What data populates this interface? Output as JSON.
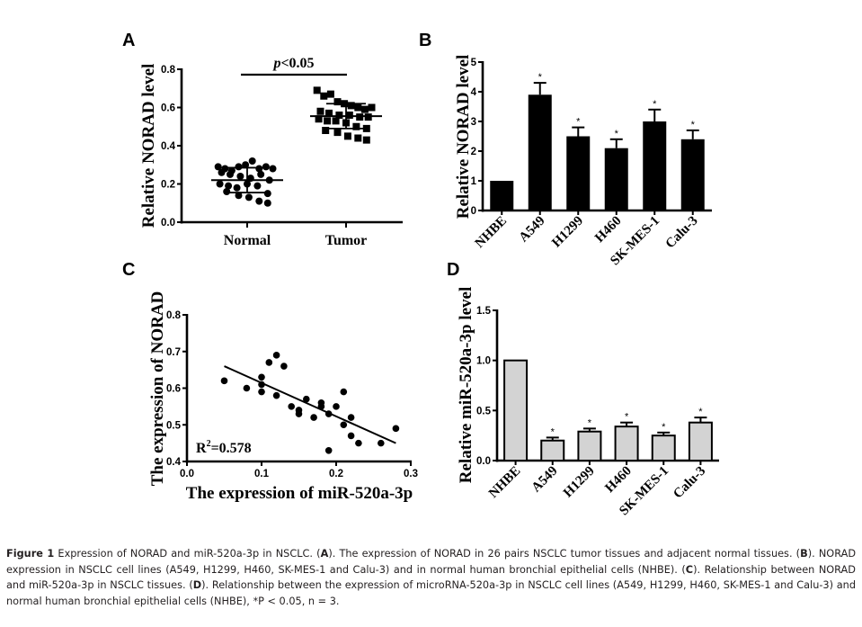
{
  "chart_data": [
    {
      "panel": "A",
      "type": "scatter",
      "subtype": "dot-plot with mean ± SD",
      "ylabel": "Relative NORAD level",
      "xlabel": "",
      "ylim": [
        0.0,
        0.8
      ],
      "yticks": [
        "0.0",
        "0.2",
        "0.4",
        "0.6",
        "0.8"
      ],
      "yticks_values": [
        0,
        0.2,
        0.4,
        0.6,
        0.8
      ],
      "categories": [
        "Normal",
        "Tumor"
      ],
      "annotation": "p<0.05",
      "series": [
        {
          "name": "Normal",
          "marker": "circle",
          "mean": 0.22,
          "sd": 0.065,
          "values": [
            0.29,
            0.28,
            0.27,
            0.29,
            0.3,
            0.32,
            0.28,
            0.29,
            0.28,
            0.26,
            0.25,
            0.24,
            0.23,
            0.25,
            0.22,
            0.2,
            0.19,
            0.18,
            0.2,
            0.19,
            0.15,
            0.16,
            0.14,
            0.13,
            0.11,
            0.1
          ]
        },
        {
          "name": "Tumor",
          "marker": "square",
          "mean": 0.555,
          "sd": 0.065,
          "values": [
            0.69,
            0.66,
            0.67,
            0.63,
            0.62,
            0.61,
            0.6,
            0.59,
            0.6,
            0.58,
            0.57,
            0.56,
            0.56,
            0.55,
            0.55,
            0.54,
            0.53,
            0.53,
            0.52,
            0.5,
            0.49,
            0.48,
            0.47,
            0.45,
            0.44,
            0.43
          ]
        }
      ]
    },
    {
      "panel": "B",
      "type": "bar",
      "ylabel": "Relative NORAD level",
      "xlabel": "",
      "ylim": [
        0,
        5
      ],
      "yticks": [
        "0",
        "1",
        "2",
        "3",
        "4",
        "5"
      ],
      "yticks_values": [
        0,
        1,
        2,
        3,
        4,
        5
      ],
      "categories": [
        "NHBE",
        "A549",
        "H1299",
        "H460",
        "SK-MES-1",
        "Calu-3"
      ],
      "values": [
        1.0,
        3.9,
        2.5,
        2.1,
        3.0,
        2.4
      ],
      "errors": [
        0,
        0.4,
        0.3,
        0.3,
        0.4,
        0.3
      ],
      "significance": [
        "",
        "*",
        "*",
        "*",
        "*",
        "*"
      ],
      "bar_color": "#000000"
    },
    {
      "panel": "C",
      "type": "scatter",
      "xlabel": "The expression of miR-520a-3p",
      "ylabel": "The expression of NORAD",
      "xlim": [
        0.0,
        0.3
      ],
      "ylim": [
        0.4,
        0.8
      ],
      "xticks": [
        "0.0",
        "0.1",
        "0.2",
        "0.3"
      ],
      "xticks_values": [
        0.0,
        0.1,
        0.2,
        0.3
      ],
      "yticks": [
        "0.4",
        "0.5",
        "0.6",
        "0.7",
        "0.8"
      ],
      "yticks_values": [
        0.4,
        0.5,
        0.6,
        0.7,
        0.8
      ],
      "annotation": "R²=0.578",
      "annotation_base": "R",
      "annotation_sup": "2",
      "annotation_rest": "=0.578",
      "points": [
        [
          0.05,
          0.62
        ],
        [
          0.08,
          0.6
        ],
        [
          0.1,
          0.63
        ],
        [
          0.1,
          0.61
        ],
        [
          0.1,
          0.59
        ],
        [
          0.11,
          0.67
        ],
        [
          0.12,
          0.69
        ],
        [
          0.12,
          0.58
        ],
        [
          0.13,
          0.66
        ],
        [
          0.14,
          0.55
        ],
        [
          0.15,
          0.54
        ],
        [
          0.15,
          0.53
        ],
        [
          0.16,
          0.57
        ],
        [
          0.17,
          0.52
        ],
        [
          0.18,
          0.56
        ],
        [
          0.18,
          0.55
        ],
        [
          0.19,
          0.53
        ],
        [
          0.19,
          0.43
        ],
        [
          0.2,
          0.55
        ],
        [
          0.21,
          0.59
        ],
        [
          0.21,
          0.5
        ],
        [
          0.22,
          0.52
        ],
        [
          0.22,
          0.47
        ],
        [
          0.23,
          0.45
        ],
        [
          0.26,
          0.45
        ],
        [
          0.28,
          0.49
        ]
      ],
      "fit_line": {
        "x": [
          0.05,
          0.28
        ],
        "y": [
          0.66,
          0.45
        ]
      }
    },
    {
      "panel": "D",
      "type": "bar",
      "ylabel": "Relative miR-520a-3p level",
      "xlabel": "",
      "ylim": [
        0.0,
        1.5
      ],
      "yticks": [
        "0.0",
        "0.5",
        "1.0",
        "1.5"
      ],
      "yticks_values": [
        0.0,
        0.5,
        1.0,
        1.5
      ],
      "categories": [
        "NHBE",
        "A549",
        "H1299",
        "H460",
        "SK-MES-1",
        "Calu-3"
      ],
      "values": [
        1.0,
        0.2,
        0.29,
        0.34,
        0.25,
        0.38
      ],
      "errors": [
        0,
        0.03,
        0.03,
        0.04,
        0.03,
        0.05
      ],
      "significance": [
        "",
        "*",
        "*",
        "*",
        "*",
        "*"
      ],
      "bar_color": "#d3d3d3"
    }
  ],
  "caption": {
    "label": "Figure 1",
    "intro": " Expression of NORAD and miR-520a-3p in NSCLC. (",
    "a": "A",
    "a_text": "). The expression of NORAD in 26 pairs NSCLC tumor tissues and adjacent normal tissues. (",
    "b": "B",
    "b_text": "). NORAD expression in NSCLC cell lines (A549, H1299, H460, SK-MES-1 and Calu-3) and in normal human bronchial epithelial cells (NHBE). (",
    "c": "C",
    "c_text": "). Relationship between NORAD and miR-520a-3p in NSCLC tissues. (",
    "d": "D",
    "d_text": "). Relationship between the expression of microRNA-520a-3p in NSCLC cell lines (A549, H1299, H460, SK-MES-1 and Calu-3) and normal human bronchial epithelial cells (NHBE), *P < 0.05, n = 3."
  }
}
